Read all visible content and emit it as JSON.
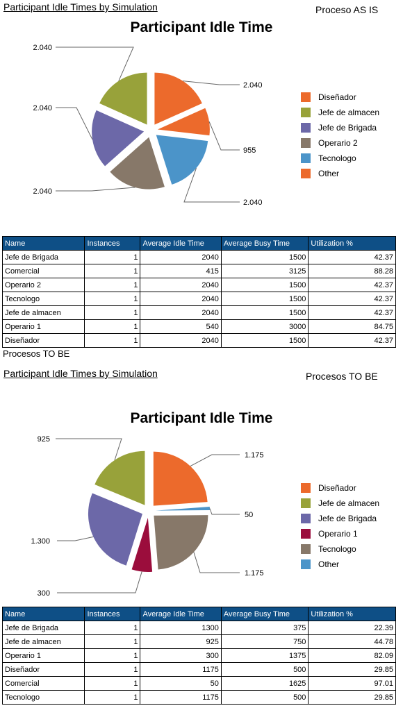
{
  "as_is": {
    "section_title": "Participant Idle Times by Simulation",
    "section_note": "Proceso AS IS",
    "chart_data": {
      "type": "pie",
      "title": "Participant Idle Time",
      "slices": [
        {
          "name": "Diseñador",
          "value": 2040,
          "label": "2.040",
          "color": "#ec6a2c"
        },
        {
          "name": "Other",
          "value": 955,
          "label": "955",
          "color": "#ec6a2c"
        },
        {
          "name": "Tecnologo",
          "value": 2040,
          "label": "2.040",
          "color": "#4b94c9"
        },
        {
          "name": "Operario 2",
          "value": 2040,
          "label": "2.040",
          "color": "#877869"
        },
        {
          "name": "Jefe de Brigada",
          "value": 2040,
          "label": "2.040",
          "color": "#6c68a8"
        },
        {
          "name": "Jefe de almacen",
          "value": 2040,
          "label": "2.040",
          "color": "#98a23a"
        }
      ],
      "legend": [
        {
          "name": "Diseñador",
          "color": "#ec6a2c"
        },
        {
          "name": "Jefe de almacen",
          "color": "#98a23a"
        },
        {
          "name": "Jefe de Brigada",
          "color": "#6c68a8"
        },
        {
          "name": "Operario 2",
          "color": "#877869"
        },
        {
          "name": "Tecnologo",
          "color": "#4b94c9"
        },
        {
          "name": "Other",
          "color": "#ec6a2c"
        }
      ],
      "legend_position": "right"
    },
    "table": {
      "columns": [
        "Name",
        "Instances",
        "Average Idle Time",
        "Average Busy Time",
        "Utilization %"
      ],
      "rows": [
        [
          "Jefe de Brigada",
          "1",
          "2040",
          "1500",
          "42.37"
        ],
        [
          "Comercial",
          "1",
          "415",
          "3125",
          "88.28"
        ],
        [
          "Operario 2",
          "1",
          "2040",
          "1500",
          "42.37"
        ],
        [
          "Tecnologo",
          "1",
          "2040",
          "1500",
          "42.37"
        ],
        [
          "Jefe de almacen",
          "1",
          "2040",
          "1500",
          "42.37"
        ],
        [
          "Operario 1",
          "1",
          "540",
          "3000",
          "84.75"
        ],
        [
          "Diseñador",
          "1",
          "2040",
          "1500",
          "42.37"
        ]
      ]
    }
  },
  "between_caption": "Procesos TO BE",
  "to_be": {
    "section_title": "Participant Idle Times by Simulation",
    "section_note": "Procesos TO BE",
    "chart_data": {
      "type": "pie",
      "title": "Participant Idle Time",
      "slices": [
        {
          "name": "Diseñador",
          "value": 1175,
          "label": "1.175",
          "color": "#ec6a2c"
        },
        {
          "name": "Other",
          "value": 50,
          "label": "50",
          "color": "#4b94c9"
        },
        {
          "name": "Tecnologo",
          "value": 1175,
          "label": "1.175",
          "color": "#877869"
        },
        {
          "name": "Operario 1",
          "value": 300,
          "label": "300",
          "color": "#9b0d3c"
        },
        {
          "name": "Jefe de Brigada",
          "value": 1300,
          "label": "1.300",
          "color": "#6c68a8"
        },
        {
          "name": "Jefe de almacen",
          "value": 925,
          "label": "925",
          "color": "#98a23a"
        }
      ],
      "legend": [
        {
          "name": "Diseñador",
          "color": "#ec6a2c"
        },
        {
          "name": "Jefe de almacen",
          "color": "#98a23a"
        },
        {
          "name": "Jefe de Brigada",
          "color": "#6c68a8"
        },
        {
          "name": "Operario 1",
          "color": "#9b0d3c"
        },
        {
          "name": "Tecnologo",
          "color": "#877869"
        },
        {
          "name": "Other",
          "color": "#4b94c9"
        }
      ],
      "legend_position": "right"
    },
    "table": {
      "columns": [
        "Name",
        "Instances",
        "Average Idle Time",
        "Average Busy Time",
        "Utilization %"
      ],
      "rows": [
        [
          "Jefe de Brigada",
          "1",
          "1300",
          "375",
          "22.39"
        ],
        [
          "Jefe de almacen",
          "1",
          "925",
          "750",
          "44.78"
        ],
        [
          "Operario 1",
          "1",
          "300",
          "1375",
          "82.09"
        ],
        [
          "Diseñador",
          "1",
          "1175",
          "500",
          "29.85"
        ],
        [
          "Comercial",
          "1",
          "50",
          "1625",
          "97.01"
        ],
        [
          "Tecnologo",
          "1",
          "1175",
          "500",
          "29.85"
        ]
      ]
    }
  }
}
